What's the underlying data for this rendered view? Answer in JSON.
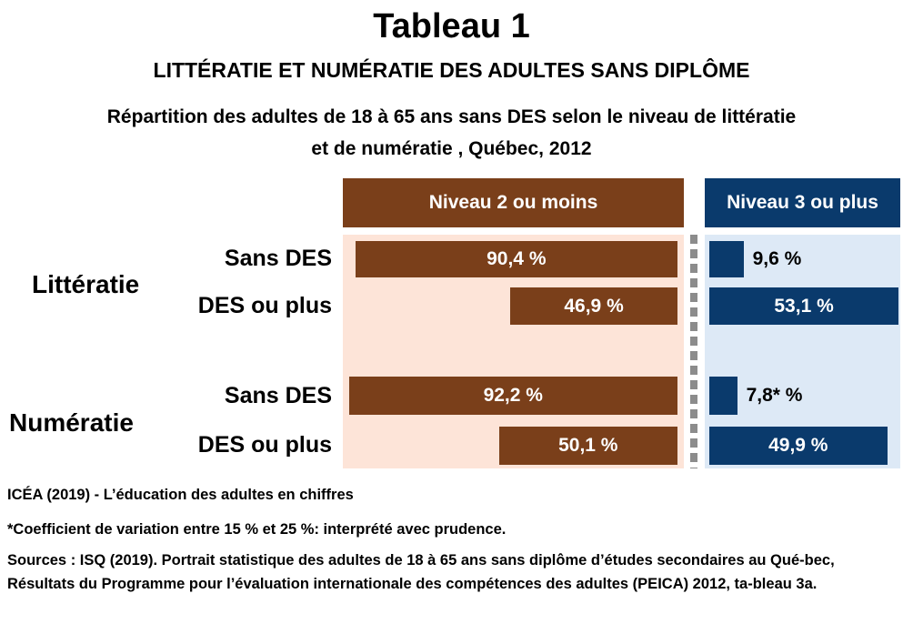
{
  "chart_data": {
    "type": "bar",
    "orientation": "horizontal",
    "title": "Tableau 1",
    "subtitle": "LITTÉRATIE ET NUMÉRATIE DES ADULTES SANS DIPLÔME",
    "description_lines": [
      "Répartition des adultes de 18 à 65 ans sans DES selon le niveau de littératie",
      "et de numératie , Québec, 2012"
    ],
    "series": [
      {
        "name": "Niveau 2 ou moins",
        "color": "#7a3f1a",
        "values": [
          90.4,
          46.9,
          92.2,
          50.1
        ],
        "labels": [
          "90,4 %",
          "46,9 %",
          "92,2 %",
          "50,1 %"
        ]
      },
      {
        "name": "Niveau 3 ou plus",
        "color": "#0a3a6c",
        "values": [
          9.6,
          53.1,
          7.8,
          49.9
        ],
        "labels": [
          "9,6 %",
          "53,1 %",
          "7,8* %",
          "49,9 %"
        ]
      }
    ],
    "groups": [
      {
        "name": "Littératie",
        "categories": [
          "Sans DES",
          "DES ou plus"
        ]
      },
      {
        "name": "Numératie",
        "categories": [
          "Sans DES",
          "DES ou plus"
        ]
      }
    ],
    "background_colors": {
      "left": "#fde4d8",
      "right": "#dde9f6"
    },
    "unit": "%"
  },
  "footer": {
    "credit": "ICÉA (2019) - L’éducation des adultes en chiffres",
    "note": "*Coefficient de variation entre 15 % et 25 %: interprété avec prudence.",
    "sources": "Sources : ISQ (2019). Portrait statistique des adultes de 18 à 65 ans sans diplôme d’études secondaires au Qué-bec, Résultats du Programme pour l’évaluation internationale des compétences des adultes (PEICA) 2012, ta-bleau 3a."
  }
}
